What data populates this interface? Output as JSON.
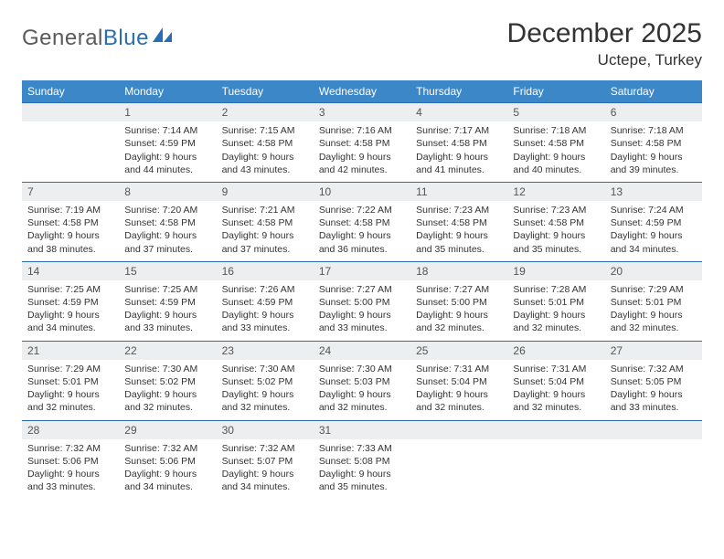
{
  "logo": {
    "part1": "General",
    "part2": "Blue"
  },
  "title": "December 2025",
  "location": "Uctepe, Turkey",
  "colors": {
    "header_bg": "#3b87c8",
    "header_text": "#ffffff",
    "daynum_bg": "#eceeef",
    "row_border": "#2a6db5",
    "logo_gray": "#5a5a5a",
    "logo_blue": "#2a6db5"
  },
  "weekdays": [
    "Sunday",
    "Monday",
    "Tuesday",
    "Wednesday",
    "Thursday",
    "Friday",
    "Saturday"
  ],
  "weeks": [
    {
      "nums": [
        "",
        "1",
        "2",
        "3",
        "4",
        "5",
        "6"
      ],
      "cells": [
        null,
        {
          "sunrise": "Sunrise: 7:14 AM",
          "sunset": "Sunset: 4:59 PM",
          "day1": "Daylight: 9 hours",
          "day2": "and 44 minutes."
        },
        {
          "sunrise": "Sunrise: 7:15 AM",
          "sunset": "Sunset: 4:58 PM",
          "day1": "Daylight: 9 hours",
          "day2": "and 43 minutes."
        },
        {
          "sunrise": "Sunrise: 7:16 AM",
          "sunset": "Sunset: 4:58 PM",
          "day1": "Daylight: 9 hours",
          "day2": "and 42 minutes."
        },
        {
          "sunrise": "Sunrise: 7:17 AM",
          "sunset": "Sunset: 4:58 PM",
          "day1": "Daylight: 9 hours",
          "day2": "and 41 minutes."
        },
        {
          "sunrise": "Sunrise: 7:18 AM",
          "sunset": "Sunset: 4:58 PM",
          "day1": "Daylight: 9 hours",
          "day2": "and 40 minutes."
        },
        {
          "sunrise": "Sunrise: 7:18 AM",
          "sunset": "Sunset: 4:58 PM",
          "day1": "Daylight: 9 hours",
          "day2": "and 39 minutes."
        }
      ]
    },
    {
      "nums": [
        "7",
        "8",
        "9",
        "10",
        "11",
        "12",
        "13"
      ],
      "cells": [
        {
          "sunrise": "Sunrise: 7:19 AM",
          "sunset": "Sunset: 4:58 PM",
          "day1": "Daylight: 9 hours",
          "day2": "and 38 minutes."
        },
        {
          "sunrise": "Sunrise: 7:20 AM",
          "sunset": "Sunset: 4:58 PM",
          "day1": "Daylight: 9 hours",
          "day2": "and 37 minutes."
        },
        {
          "sunrise": "Sunrise: 7:21 AM",
          "sunset": "Sunset: 4:58 PM",
          "day1": "Daylight: 9 hours",
          "day2": "and 37 minutes."
        },
        {
          "sunrise": "Sunrise: 7:22 AM",
          "sunset": "Sunset: 4:58 PM",
          "day1": "Daylight: 9 hours",
          "day2": "and 36 minutes."
        },
        {
          "sunrise": "Sunrise: 7:23 AM",
          "sunset": "Sunset: 4:58 PM",
          "day1": "Daylight: 9 hours",
          "day2": "and 35 minutes."
        },
        {
          "sunrise": "Sunrise: 7:23 AM",
          "sunset": "Sunset: 4:58 PM",
          "day1": "Daylight: 9 hours",
          "day2": "and 35 minutes."
        },
        {
          "sunrise": "Sunrise: 7:24 AM",
          "sunset": "Sunset: 4:59 PM",
          "day1": "Daylight: 9 hours",
          "day2": "and 34 minutes."
        }
      ]
    },
    {
      "nums": [
        "14",
        "15",
        "16",
        "17",
        "18",
        "19",
        "20"
      ],
      "cells": [
        {
          "sunrise": "Sunrise: 7:25 AM",
          "sunset": "Sunset: 4:59 PM",
          "day1": "Daylight: 9 hours",
          "day2": "and 34 minutes."
        },
        {
          "sunrise": "Sunrise: 7:25 AM",
          "sunset": "Sunset: 4:59 PM",
          "day1": "Daylight: 9 hours",
          "day2": "and 33 minutes."
        },
        {
          "sunrise": "Sunrise: 7:26 AM",
          "sunset": "Sunset: 4:59 PM",
          "day1": "Daylight: 9 hours",
          "day2": "and 33 minutes."
        },
        {
          "sunrise": "Sunrise: 7:27 AM",
          "sunset": "Sunset: 5:00 PM",
          "day1": "Daylight: 9 hours",
          "day2": "and 33 minutes."
        },
        {
          "sunrise": "Sunrise: 7:27 AM",
          "sunset": "Sunset: 5:00 PM",
          "day1": "Daylight: 9 hours",
          "day2": "and 32 minutes."
        },
        {
          "sunrise": "Sunrise: 7:28 AM",
          "sunset": "Sunset: 5:01 PM",
          "day1": "Daylight: 9 hours",
          "day2": "and 32 minutes."
        },
        {
          "sunrise": "Sunrise: 7:29 AM",
          "sunset": "Sunset: 5:01 PM",
          "day1": "Daylight: 9 hours",
          "day2": "and 32 minutes."
        }
      ]
    },
    {
      "nums": [
        "21",
        "22",
        "23",
        "24",
        "25",
        "26",
        "27"
      ],
      "cells": [
        {
          "sunrise": "Sunrise: 7:29 AM",
          "sunset": "Sunset: 5:01 PM",
          "day1": "Daylight: 9 hours",
          "day2": "and 32 minutes."
        },
        {
          "sunrise": "Sunrise: 7:30 AM",
          "sunset": "Sunset: 5:02 PM",
          "day1": "Daylight: 9 hours",
          "day2": "and 32 minutes."
        },
        {
          "sunrise": "Sunrise: 7:30 AM",
          "sunset": "Sunset: 5:02 PM",
          "day1": "Daylight: 9 hours",
          "day2": "and 32 minutes."
        },
        {
          "sunrise": "Sunrise: 7:30 AM",
          "sunset": "Sunset: 5:03 PM",
          "day1": "Daylight: 9 hours",
          "day2": "and 32 minutes."
        },
        {
          "sunrise": "Sunrise: 7:31 AM",
          "sunset": "Sunset: 5:04 PM",
          "day1": "Daylight: 9 hours",
          "day2": "and 32 minutes."
        },
        {
          "sunrise": "Sunrise: 7:31 AM",
          "sunset": "Sunset: 5:04 PM",
          "day1": "Daylight: 9 hours",
          "day2": "and 32 minutes."
        },
        {
          "sunrise": "Sunrise: 7:32 AM",
          "sunset": "Sunset: 5:05 PM",
          "day1": "Daylight: 9 hours",
          "day2": "and 33 minutes."
        }
      ]
    },
    {
      "nums": [
        "28",
        "29",
        "30",
        "31",
        "",
        "",
        ""
      ],
      "cells": [
        {
          "sunrise": "Sunrise: 7:32 AM",
          "sunset": "Sunset: 5:06 PM",
          "day1": "Daylight: 9 hours",
          "day2": "and 33 minutes."
        },
        {
          "sunrise": "Sunrise: 7:32 AM",
          "sunset": "Sunset: 5:06 PM",
          "day1": "Daylight: 9 hours",
          "day2": "and 34 minutes."
        },
        {
          "sunrise": "Sunrise: 7:32 AM",
          "sunset": "Sunset: 5:07 PM",
          "day1": "Daylight: 9 hours",
          "day2": "and 34 minutes."
        },
        {
          "sunrise": "Sunrise: 7:33 AM",
          "sunset": "Sunset: 5:08 PM",
          "day1": "Daylight: 9 hours",
          "day2": "and 35 minutes."
        },
        null,
        null,
        null
      ]
    }
  ]
}
